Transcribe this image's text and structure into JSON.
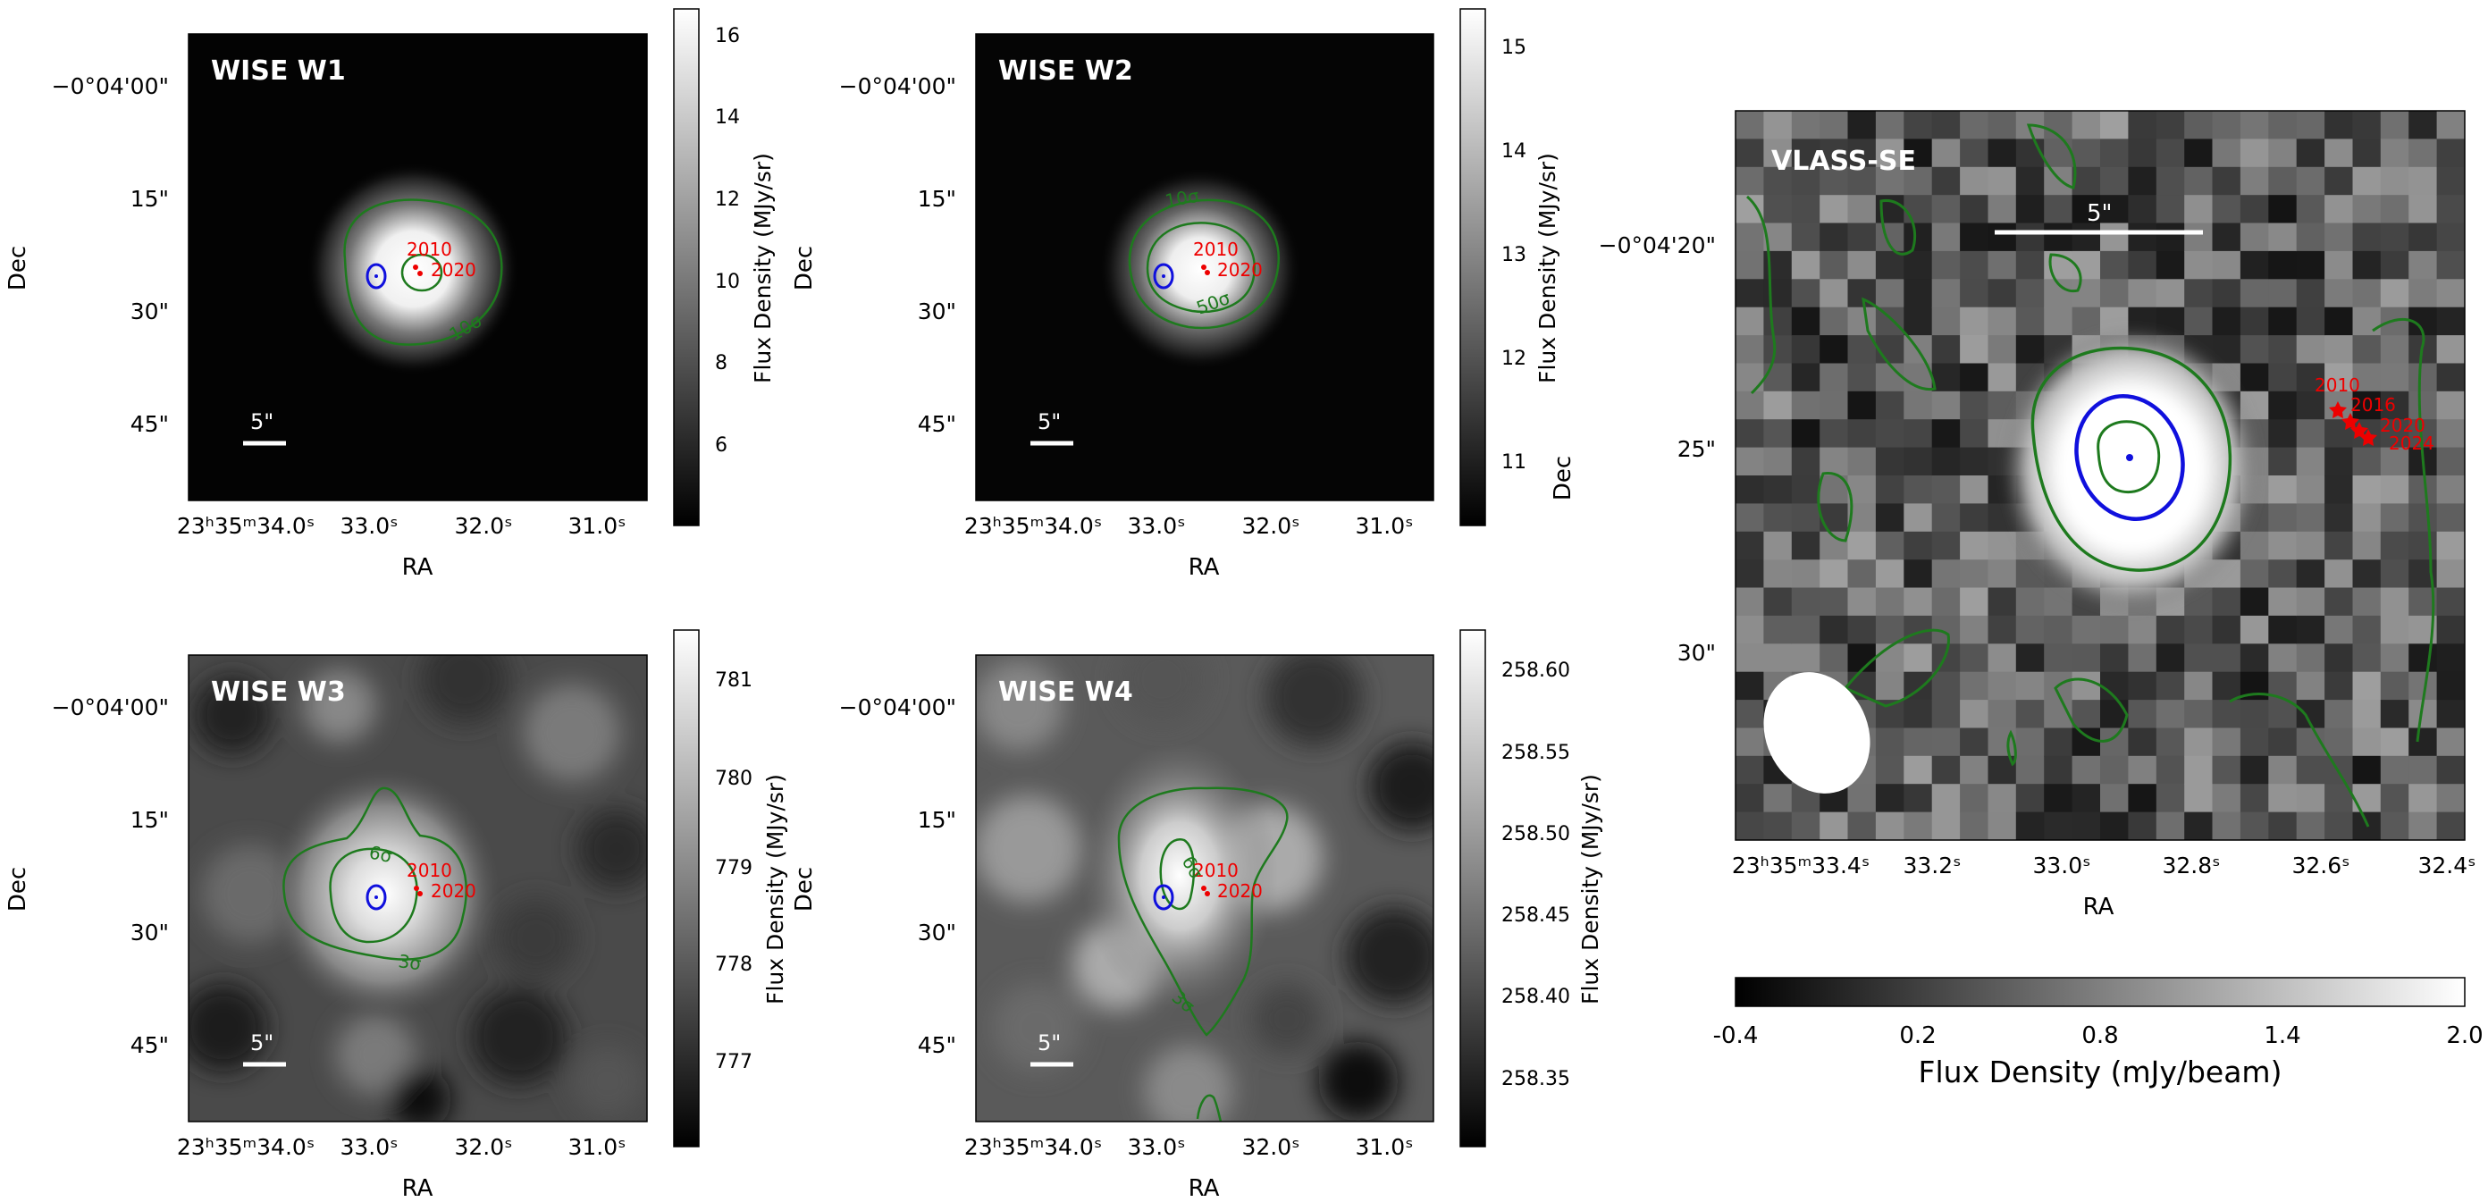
{
  "panels": [
    {
      "id": "w1",
      "title": "WISE W1",
      "dec_ticks": [
        "−0°04'00\"",
        "15\"",
        "30\"",
        "45\""
      ],
      "ra_ticks": [
        "23ʰ35ᵐ34.0ˢ",
        "33.0ˢ",
        "32.0ˢ",
        "31.0ˢ"
      ],
      "ra_label": "RA",
      "dec_label": "Dec",
      "scalebar_label": "5\"",
      "contour_labels": [
        "10σ"
      ],
      "epoch_labels": [
        "2010",
        "2020"
      ],
      "colorbar": {
        "ticks": [
          "6",
          "8",
          "10",
          "12",
          "14",
          "16"
        ],
        "label": "Flux Density (MJy/sr)"
      }
    },
    {
      "id": "w2",
      "title": "WISE W2",
      "dec_ticks": [
        "−0°04'00\"",
        "15\"",
        "30\"",
        "45\""
      ],
      "ra_ticks": [
        "23ʰ35ᵐ34.0ˢ",
        "33.0ˢ",
        "32.0ˢ",
        "31.0ˢ"
      ],
      "ra_label": "RA",
      "dec_label": "Dec",
      "scalebar_label": "5\"",
      "contour_labels": [
        "10σ",
        "50σ"
      ],
      "epoch_labels": [
        "2010",
        "2020"
      ],
      "colorbar": {
        "ticks": [
          "11",
          "12",
          "13",
          "14",
          "15"
        ],
        "label": "Flux Density (MJy/sr)"
      }
    },
    {
      "id": "w3",
      "title": "WISE W3",
      "dec_ticks": [
        "−0°04'00\"",
        "15\"",
        "30\"",
        "45\""
      ],
      "ra_ticks": [
        "23ʰ35ᵐ34.0ˢ",
        "33.0ˢ",
        "32.0ˢ",
        "31.0ˢ"
      ],
      "ra_label": "RA",
      "dec_label": "Dec",
      "scalebar_label": "5\"",
      "contour_labels": [
        "6σ",
        "3σ"
      ],
      "epoch_labels": [
        "2010",
        "2020"
      ],
      "colorbar": {
        "ticks": [
          "777",
          "778",
          "779",
          "780",
          "781"
        ],
        "label": "Flux Density (MJy/sr)"
      }
    },
    {
      "id": "w4",
      "title": "WISE W4",
      "dec_ticks": [
        "−0°04'00\"",
        "15\"",
        "30\"",
        "45\""
      ],
      "ra_ticks": [
        "23ʰ35ᵐ34.0ˢ",
        "33.0ˢ",
        "32.0ˢ",
        "31.0ˢ"
      ],
      "ra_label": "RA",
      "dec_label": "Dec",
      "scalebar_label": "5\"",
      "contour_labels": [
        "6σ",
        "3σ"
      ],
      "epoch_labels": [
        "2010",
        "2020"
      ],
      "colorbar": {
        "ticks": [
          "258.35",
          "258.40",
          "258.45",
          "258.50",
          "258.55",
          "258.60"
        ],
        "label": "Flux Density (MJy/sr)"
      }
    },
    {
      "id": "vlass",
      "title": "VLASS-SE",
      "dec_ticks": [
        "−0°04'20\"",
        "25\"",
        "30\""
      ],
      "ra_ticks": [
        "23ʰ35ᵐ33.4ˢ",
        "33.2ˢ",
        "33.0ˢ",
        "32.8ˢ",
        "32.6ˢ",
        "32.4ˢ"
      ],
      "ra_label": "RA",
      "dec_label": "Dec",
      "scalebar_label": "5\"",
      "epoch_labels": [
        "2010",
        "2016",
        "2020",
        "2024"
      ],
      "colorbar": {
        "ticks": [
          "-0.4",
          "0.2",
          "0.8",
          "1.4",
          "2.0"
        ],
        "label": "Flux Density (mJy/beam)"
      }
    }
  ],
  "colors": {
    "contour": "#1e7a1e",
    "ellipse": "#1010dd",
    "marker": "#ee0000",
    "scalebar": "#ffffff"
  }
}
